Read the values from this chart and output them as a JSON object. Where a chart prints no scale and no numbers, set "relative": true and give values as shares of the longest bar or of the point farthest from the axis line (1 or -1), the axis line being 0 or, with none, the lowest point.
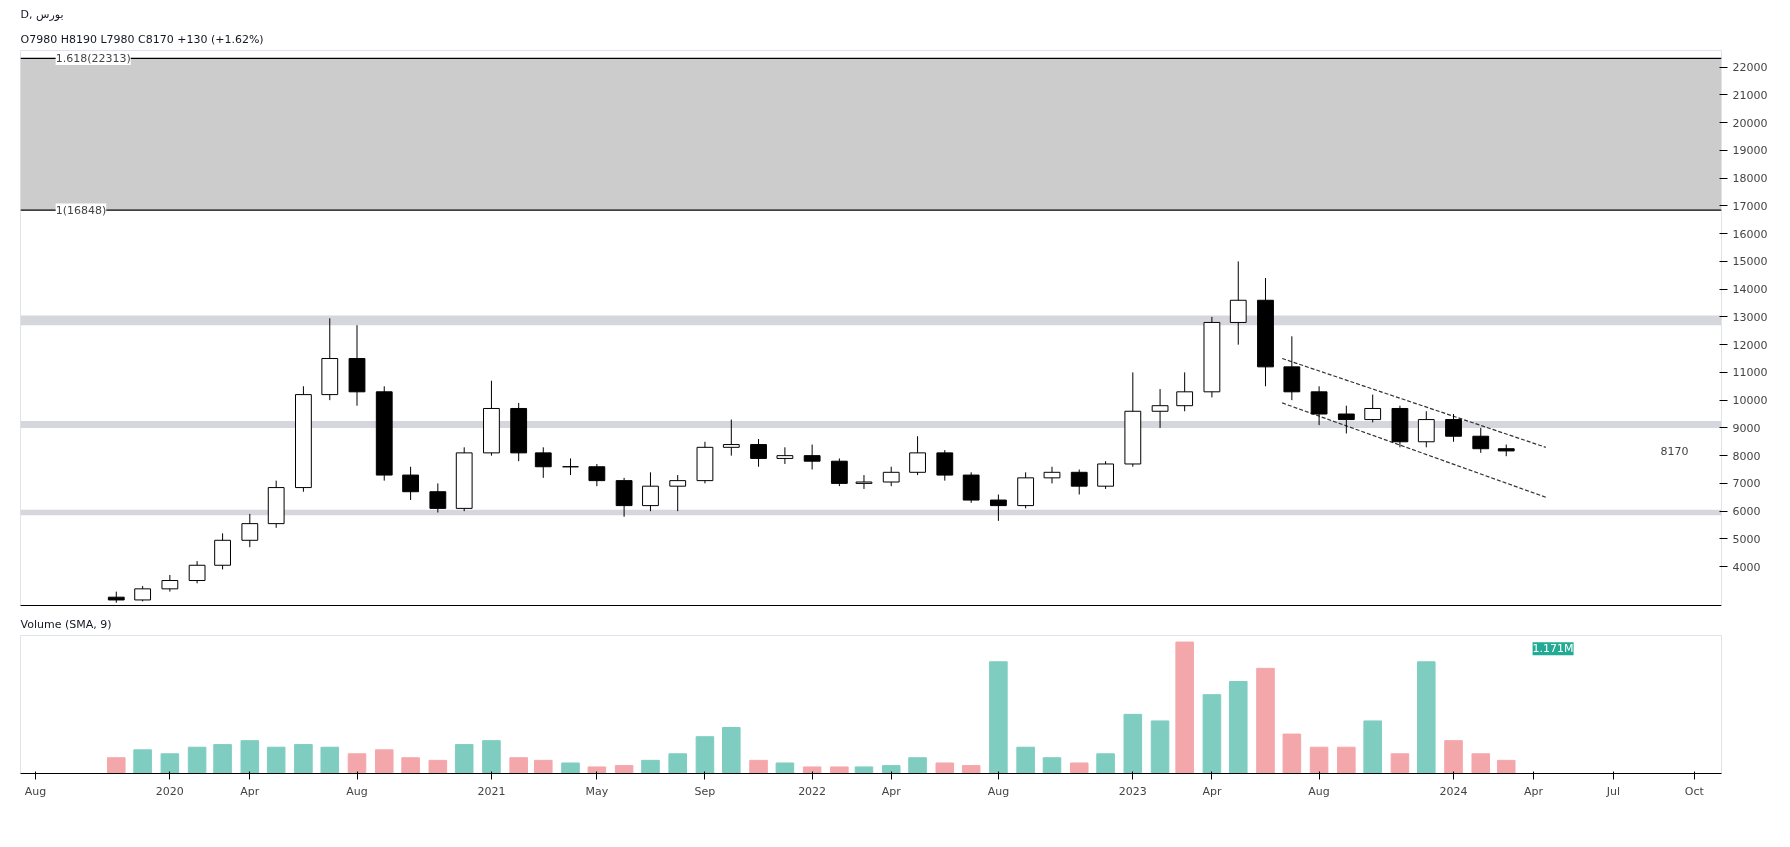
{
  "chart_data": [
    {
      "type": "candlestick",
      "title": "D, بورس",
      "subtitle": "O7980  H8190  L7980  C8170  +130 (+1.62%)",
      "x": [
        "2019-11",
        "2019-12",
        "2020-01",
        "2020-02",
        "2020-03",
        "2020-04",
        "2020-05",
        "2020-06",
        "2020-07",
        "2020-08",
        "2020-09",
        "2020-10",
        "2020-11",
        "2020-12",
        "2021-01",
        "2021-02",
        "2021-03",
        "2021-04",
        "2021-05",
        "2021-06",
        "2021-07",
        "2021-08",
        "2021-09",
        "2021-10",
        "2021-11",
        "2021-12",
        "2022-01",
        "2022-02",
        "2022-03",
        "2022-04",
        "2022-05",
        "2022-06",
        "2022-07",
        "2022-08",
        "2022-09",
        "2022-10",
        "2022-11",
        "2022-12",
        "2023-01",
        "2023-02",
        "2023-03",
        "2023-04",
        "2023-05",
        "2023-06",
        "2023-07",
        "2023-08",
        "2023-09",
        "2023-10",
        "2023-11",
        "2023-12",
        "2024-01",
        "2024-02",
        "2024-03"
      ],
      "ohlc": [
        [
          2900,
          3100,
          2700,
          2800
        ],
        [
          2800,
          3300,
          2750,
          3200
        ],
        [
          3200,
          3700,
          3100,
          3500
        ],
        [
          3500,
          4200,
          3400,
          4050
        ],
        [
          4050,
          5200,
          3900,
          4950
        ],
        [
          4950,
          5900,
          4700,
          5550
        ],
        [
          5550,
          7100,
          5400,
          6850
        ],
        [
          6850,
          10500,
          6700,
          10200
        ],
        [
          10200,
          12950,
          10000,
          11500
        ],
        [
          11500,
          12700,
          9800,
          10300
        ],
        [
          10300,
          10500,
          7100,
          7300
        ],
        [
          7300,
          7600,
          6400,
          6700
        ],
        [
          6700,
          7000,
          5950,
          6100
        ],
        [
          6100,
          8300,
          6000,
          8100
        ],
        [
          8100,
          10700,
          8000,
          9700
        ],
        [
          9700,
          9900,
          7800,
          8100
        ],
        [
          8100,
          8300,
          7200,
          7600
        ],
        [
          7600,
          7900,
          7300,
          7600
        ],
        [
          7600,
          7700,
          6900,
          7100
        ],
        [
          7100,
          7200,
          5800,
          6200
        ],
        [
          6200,
          7400,
          6000,
          6900
        ],
        [
          6900,
          7300,
          6000,
          7100
        ],
        [
          7100,
          8500,
          7000,
          8300
        ],
        [
          8300,
          9300,
          8000,
          8400
        ],
        [
          8400,
          8600,
          7600,
          7900
        ],
        [
          7900,
          8300,
          7700,
          8000
        ],
        [
          8000,
          8400,
          7500,
          7800
        ],
        [
          7800,
          7900,
          6900,
          7000
        ],
        [
          7000,
          7300,
          6800,
          7050
        ],
        [
          7050,
          7600,
          6900,
          7400
        ],
        [
          7400,
          8700,
          7300,
          8100
        ],
        [
          8100,
          8200,
          7100,
          7300
        ],
        [
          7300,
          7400,
          6300,
          6400
        ],
        [
          6400,
          6600,
          5650,
          6200
        ],
        [
          6200,
          7400,
          6100,
          7200
        ],
        [
          7200,
          7600,
          7000,
          7400
        ],
        [
          7400,
          7500,
          6600,
          6900
        ],
        [
          6900,
          7800,
          6800,
          7700
        ],
        [
          7700,
          11000,
          7600,
          9600
        ],
        [
          9600,
          10400,
          9000,
          9800
        ],
        [
          9800,
          11000,
          9600,
          10300
        ],
        [
          10300,
          13000,
          10100,
          12800
        ],
        [
          12800,
          15000,
          12000,
          13600
        ],
        [
          13600,
          14400,
          10500,
          11200
        ],
        [
          11200,
          12300,
          10000,
          10300
        ],
        [
          10300,
          10500,
          9100,
          9500
        ],
        [
          9500,
          9800,
          8800,
          9300
        ],
        [
          9300,
          10200,
          9200,
          9700
        ],
        [
          9700,
          9800,
          8300,
          8500
        ],
        [
          8500,
          9600,
          8300,
          9300
        ],
        [
          9300,
          9500,
          8500,
          8700
        ],
        [
          8700,
          9000,
          8100,
          8250
        ],
        [
          8250,
          8400,
          7980,
          8170
        ]
      ],
      "series": [
        {
          "type": "line",
          "color": "#333333",
          "line_style": "dashed",
          "x": [
            "2023-06-20",
            "2024-04-15"
          ],
          "values": [
            11500,
            8300
          ]
        },
        {
          "type": "line",
          "color": "#333333",
          "line_style": "dashed",
          "x": [
            "2023-06-20",
            "2024-04-15"
          ],
          "values": [
            9900,
            6500
          ]
        }
      ],
      "bands": [
        {
          "axis": "y",
          "from": 12700,
          "to": 13050,
          "color": "#d6d7dc"
        },
        {
          "axis": "y",
          "from": 9000,
          "to": 9250,
          "color": "#d6d7dc"
        },
        {
          "axis": "y",
          "from": 5850,
          "to": 6050,
          "color": "#d6d7dc"
        },
        {
          "axis": "y",
          "from": 16848,
          "to": 22313,
          "color": "#cccccc"
        }
      ],
      "ref_lines": [
        {
          "axis": "y",
          "value": 22313,
          "label": "1.618(22313)",
          "color": "#000000"
        },
        {
          "axis": "y",
          "value": 16848,
          "label": "1(16848)",
          "color": "#000000"
        }
      ],
      "annotations": [
        "8170"
      ],
      "xlim": [
        "2019-07-15",
        "2024-11-01"
      ],
      "ylim": [
        2600,
        22600
      ],
      "yticks": [
        4000,
        5000,
        6000,
        7000,
        8000,
        9000,
        10000,
        11000,
        12000,
        13000,
        14000,
        15000,
        16000,
        17000,
        18000,
        19000,
        20000,
        21000,
        22000
      ],
      "tick_labels": "y"
    },
    {
      "type": "bar",
      "title": "Volume (SMA, 9)",
      "annotations": [
        "1.171M"
      ],
      "relative": true,
      "tick_labels": "x",
      "x": [
        "2019-11",
        "2019-12",
        "2020-01",
        "2020-02",
        "2020-03",
        "2020-04",
        "2020-05",
        "2020-06",
        "2020-07",
        "2020-08",
        "2020-09",
        "2020-10",
        "2020-11",
        "2020-12",
        "2021-01",
        "2021-02",
        "2021-03",
        "2021-04",
        "2021-05",
        "2021-06",
        "2021-07",
        "2021-08",
        "2021-09",
        "2021-10",
        "2021-11",
        "2021-12",
        "2022-01",
        "2022-02",
        "2022-03",
        "2022-04",
        "2022-05",
        "2022-06",
        "2022-07",
        "2022-08",
        "2022-09",
        "2022-10",
        "2022-11",
        "2022-12",
        "2023-01",
        "2023-02",
        "2023-03",
        "2023-04",
        "2023-05",
        "2023-06",
        "2023-07",
        "2023-08",
        "2023-09",
        "2023-10",
        "2023-11",
        "2023-12",
        "2024-01",
        "2024-02",
        "2024-03"
      ],
      "values": [
        0.12,
        0.18,
        0.15,
        0.2,
        0.22,
        0.25,
        0.2,
        0.22,
        0.2,
        0.15,
        0.18,
        0.12,
        0.1,
        0.22,
        0.25,
        0.12,
        0.1,
        0.08,
        0.05,
        0.06,
        0.1,
        0.15,
        0.28,
        0.35,
        0.1,
        0.08,
        0.05,
        0.05,
        0.05,
        0.06,
        0.12,
        0.08,
        0.06,
        0.85,
        0.2,
        0.12,
        0.08,
        0.15,
        0.45,
        0.4,
        1.0,
        0.6,
        0.7,
        0.8,
        0.3,
        0.2,
        0.2,
        0.4,
        0.15,
        0.85,
        0.25,
        0.15,
        0.1
      ],
      "colors": [
        "#f4a7ab",
        "#7fcdc1",
        "#7fcdc1",
        "#7fcdc1",
        "#7fcdc1",
        "#7fcdc1",
        "#7fcdc1",
        "#7fcdc1",
        "#7fcdc1",
        "#f4a7ab",
        "#f4a7ab",
        "#f4a7ab",
        "#f4a7ab",
        "#7fcdc1",
        "#7fcdc1",
        "#f4a7ab",
        "#f4a7ab",
        "#7fcdc1",
        "#f4a7ab",
        "#f4a7ab",
        "#7fcdc1",
        "#7fcdc1",
        "#7fcdc1",
        "#7fcdc1",
        "#f4a7ab",
        "#7fcdc1",
        "#f4a7ab",
        "#f4a7ab",
        "#7fcdc1",
        "#7fcdc1",
        "#7fcdc1",
        "#f4a7ab",
        "#f4a7ab",
        "#7fcdc1",
        "#7fcdc1",
        "#7fcdc1",
        "#f4a7ab",
        "#7fcdc1",
        "#7fcdc1",
        "#7fcdc1",
        "#f4a7ab",
        "#7fcdc1",
        "#7fcdc1",
        "#f4a7ab",
        "#f4a7ab",
        "#f4a7ab",
        "#f4a7ab",
        "#7fcdc1",
        "#f4a7ab",
        "#7fcdc1",
        "#f4a7ab",
        "#f4a7ab",
        "#f4a7ab"
      ],
      "xlim": [
        "2019-07-15",
        "2024-11-01"
      ],
      "xticks": [
        {
          "value": "2019-08",
          "label": "Aug"
        },
        {
          "value": "2020-01",
          "label": "2020"
        },
        {
          "value": "2020-04",
          "label": "Apr"
        },
        {
          "value": "2020-08",
          "label": "Aug"
        },
        {
          "value": "2021-01",
          "label": "2021"
        },
        {
          "value": "2021-05",
          "label": "May"
        },
        {
          "value": "2021-09",
          "label": "Sep"
        },
        {
          "value": "2022-01",
          "label": "2022"
        },
        {
          "value": "2022-04",
          "label": "Apr"
        },
        {
          "value": "2022-08",
          "label": "Aug"
        },
        {
          "value": "2023-01",
          "label": "2023"
        },
        {
          "value": "2023-04",
          "label": "Apr"
        },
        {
          "value": "2023-08",
          "label": "Aug"
        },
        {
          "value": "2024-01",
          "label": "2024"
        },
        {
          "value": "2024-04",
          "label": "Apr"
        },
        {
          "value": "2024-07",
          "label": "Jul"
        },
        {
          "value": "2024-10",
          "label": "Oct"
        }
      ]
    }
  ]
}
